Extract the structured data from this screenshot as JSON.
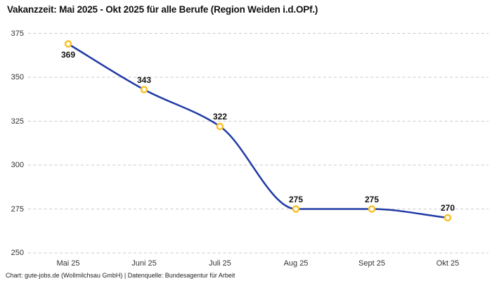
{
  "footer": {
    "text": "Chart: gute-jobs.de (Wollmilchsau GmbH) | Datenquelle: Bundesagentur für Arbeit"
  },
  "chart_data": {
    "type": "line",
    "title": "Vakanzzeit: Mai 2025 - Okt 2025 für alle Berufe (Region Weiden i.d.OPf.)",
    "categories": [
      "Mai 25",
      "Juni 25",
      "Juli 25",
      "Aug 25",
      "Sept 25",
      "Okt 25"
    ],
    "values": [
      369,
      343,
      322,
      275,
      275,
      270
    ],
    "data_labels": [
      "369",
      "343",
      "322",
      "275",
      "275",
      "270"
    ],
    "xlabel": "",
    "ylabel": "",
    "ylim": [
      250,
      375
    ],
    "yticks": [
      250,
      275,
      300,
      325,
      350,
      375
    ],
    "grid": "horizontal-dashed",
    "legend": "none",
    "line_style": "smooth",
    "marker": "open-circle",
    "colors": {
      "line": "#1f3aa5",
      "marker_ring": "#f9c32f",
      "marker_fill": "#ffffff",
      "grid": "#c9c9c9",
      "title_text": "#111111",
      "axis_text": "#333333",
      "label_text": "#111111",
      "footer_text": "#222222",
      "background": "#ffffff"
    }
  }
}
